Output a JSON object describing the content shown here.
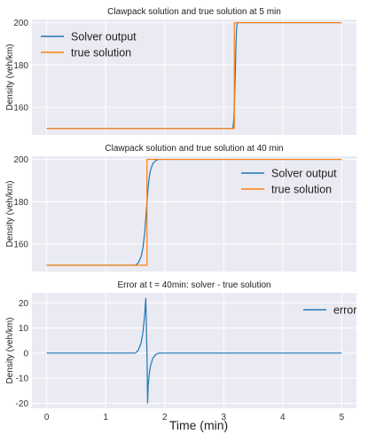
{
  "figure": {
    "xlabel": "Time (min)"
  },
  "chart_data": [
    {
      "type": "line",
      "title": "Clawpack solution and true solution at 5 min",
      "ylabel": "Density (veh/km)",
      "xlim": [
        -0.25,
        5.25
      ],
      "ylim": [
        147,
        201.5
      ],
      "yticks": [
        160,
        180,
        200
      ],
      "show_xtick_labels": false,
      "grid": true,
      "legend": {
        "placement": "top-left",
        "entries": [
          "Solver output",
          "true solution"
        ]
      },
      "series": [
        {
          "name": "Solver output",
          "color": "#1f77b4",
          "x": [
            0,
            3.15,
            3.16,
            3.17,
            3.18,
            3.19,
            3.2,
            3.21,
            3.22,
            3.23,
            5
          ],
          "y": [
            150,
            150,
            151,
            154,
            160,
            170,
            180,
            192,
            198,
            200,
            200
          ]
        },
        {
          "name": "true solution",
          "color": "#ff7f0e",
          "x": [
            0,
            3.18,
            3.18,
            5
          ],
          "y": [
            150,
            150,
            200,
            200
          ]
        }
      ]
    },
    {
      "type": "line",
      "title": "Clawpack solution and true solution at 40 min",
      "ylabel": "Density (veh/km)",
      "xlim": [
        -0.25,
        5.25
      ],
      "ylim": [
        147,
        201.5
      ],
      "yticks": [
        160,
        180,
        200
      ],
      "show_xtick_labels": false,
      "grid": true,
      "legend": {
        "placement": "top-right",
        "entries": [
          "Solver output",
          "true solution"
        ]
      },
      "series": [
        {
          "name": "Solver output",
          "color": "#1f77b4",
          "x": [
            0,
            1.5,
            1.55,
            1.6,
            1.63,
            1.66,
            1.68,
            1.7,
            1.72,
            1.74,
            1.76,
            1.8,
            1.85,
            1.9,
            5
          ],
          "y": [
            150,
            150,
            151,
            154,
            158,
            165,
            172,
            180,
            187,
            192,
            195,
            198,
            199.5,
            200,
            200
          ]
        },
        {
          "name": "true solution",
          "color": "#ff7f0e",
          "x": [
            0,
            1.7,
            1.7,
            5
          ],
          "y": [
            150,
            150,
            200,
            200
          ]
        }
      ]
    },
    {
      "type": "line",
      "title": "Error at t = 40min: solver - true solution",
      "ylabel": "Density (veh/km)",
      "xlabel": "Time (min)",
      "xlim": [
        -0.25,
        5.25
      ],
      "ylim": [
        -22,
        24
      ],
      "xticks": [
        0,
        1,
        2,
        3,
        4,
        5
      ],
      "yticks": [
        -20,
        -10,
        0,
        10,
        20
      ],
      "grid": true,
      "legend": {
        "placement": "top-right",
        "entries": [
          "error"
        ]
      },
      "series": [
        {
          "name": "error",
          "color": "#1f77b4",
          "x": [
            0,
            1.5,
            1.55,
            1.6,
            1.63,
            1.66,
            1.68,
            1.69,
            1.7,
            1.71,
            1.72,
            1.74,
            1.76,
            1.8,
            1.85,
            1.9,
            5
          ],
          "y": [
            0,
            0,
            1,
            4,
            8,
            15,
            22,
            10,
            0,
            -20,
            -13,
            -8,
            -5,
            -2,
            -0.5,
            0,
            0
          ]
        }
      ]
    }
  ]
}
